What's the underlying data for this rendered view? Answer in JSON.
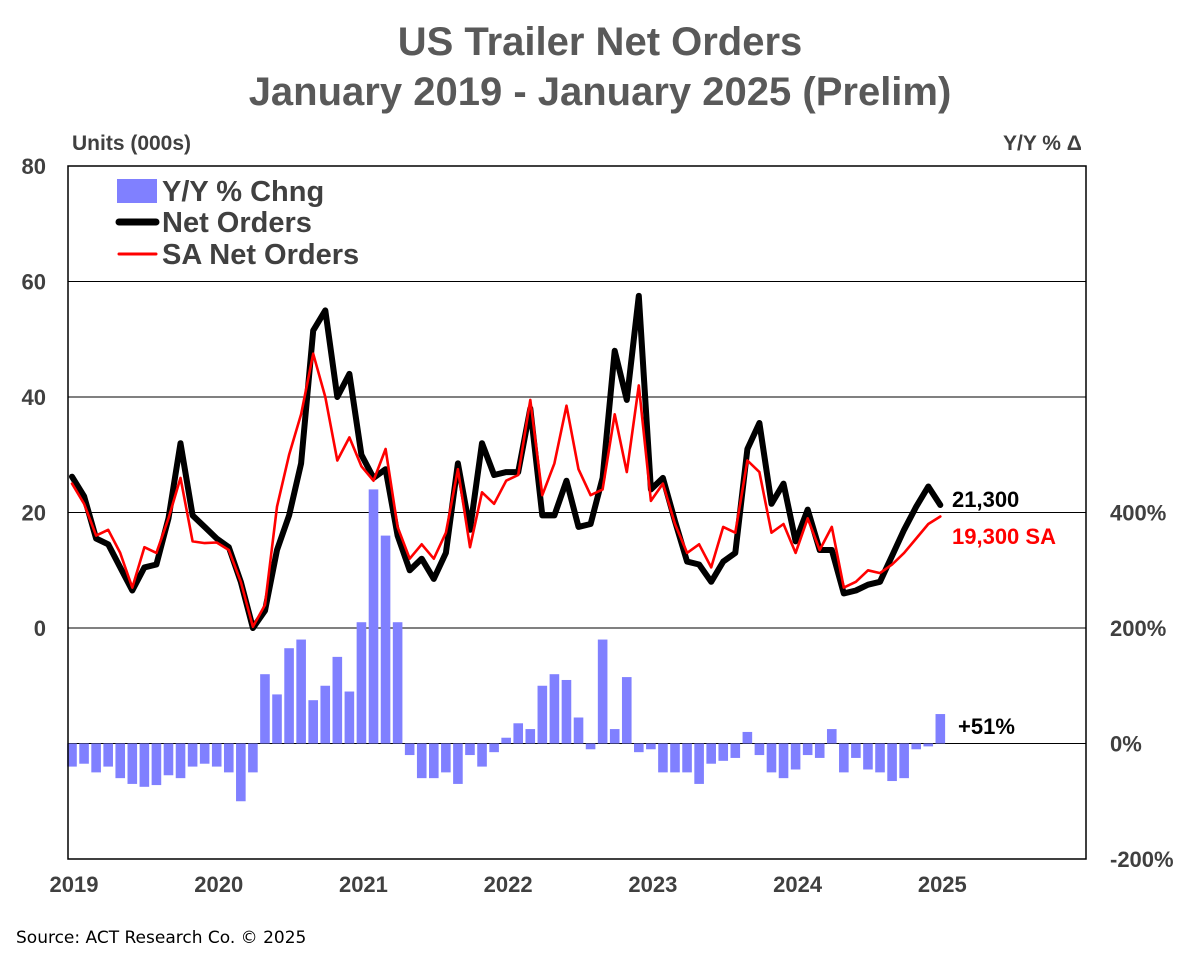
{
  "chart_data": {
    "type": "bar+line",
    "title": "US Trailer Net Orders",
    "subtitle": "January 2019 - January 2025 (Prelim)",
    "left_axis_label": "Units (000s)",
    "right_axis_label": "Y/Y % Δ",
    "left_ticks": [
      "80",
      "60",
      "40",
      "20",
      "0"
    ],
    "right_ticks": [
      "400%",
      "200%",
      "0%",
      "-200%"
    ],
    "x_ticks": [
      "2019",
      "2020",
      "2021",
      "2022",
      "2023",
      "2024",
      "2025"
    ],
    "ylim_left": [
      -40,
      80
    ],
    "ylim_right": [
      -200,
      1000
    ],
    "start": "2019-01",
    "months": [
      "2019-01",
      "2019-02",
      "2019-03",
      "2019-04",
      "2019-05",
      "2019-06",
      "2019-07",
      "2019-08",
      "2019-09",
      "2019-10",
      "2019-11",
      "2019-12",
      "2020-01",
      "2020-02",
      "2020-03",
      "2020-04",
      "2020-05",
      "2020-06",
      "2020-07",
      "2020-08",
      "2020-09",
      "2020-10",
      "2020-11",
      "2020-12",
      "2021-01",
      "2021-02",
      "2021-03",
      "2021-04",
      "2021-05",
      "2021-06",
      "2021-07",
      "2021-08",
      "2021-09",
      "2021-10",
      "2021-11",
      "2021-12",
      "2022-01",
      "2022-02",
      "2022-03",
      "2022-04",
      "2022-05",
      "2022-06",
      "2022-07",
      "2022-08",
      "2022-09",
      "2022-10",
      "2022-11",
      "2022-12",
      "2023-01",
      "2023-02",
      "2023-03",
      "2023-04",
      "2023-05",
      "2023-06",
      "2023-07",
      "2023-08",
      "2023-09",
      "2023-10",
      "2023-11",
      "2023-12",
      "2024-01",
      "2024-02",
      "2024-03",
      "2024-04",
      "2024-05",
      "2024-06",
      "2024-07",
      "2024-08",
      "2024-09",
      "2024-10",
      "2024-11",
      "2024-12",
      "2025-01"
    ],
    "legend": [
      {
        "label": "Y/Y % Chng",
        "color": "#8080FF",
        "kind": "bar"
      },
      {
        "label": "Net Orders",
        "color": "#000000",
        "kind": "line"
      },
      {
        "label": "SA Net Orders",
        "color": "#FF0000",
        "kind": "line"
      }
    ],
    "series": [
      {
        "name": "Net Orders",
        "axis": "left",
        "color": "#000000",
        "values": [
          26.2,
          22.8,
          15.5,
          14.5,
          10.5,
          6.5,
          10.5,
          11,
          19,
          32,
          19.5,
          17.5,
          15.5,
          14,
          8,
          0,
          3,
          13.5,
          19.5,
          28.5,
          51.5,
          55,
          40,
          44,
          30,
          26,
          27.5,
          16,
          10,
          12,
          8.5,
          13,
          28.5,
          17,
          32,
          26.5,
          27,
          27,
          38,
          19.5,
          19.5,
          25.5,
          17.5,
          18,
          26,
          48,
          39.5,
          57.5,
          24,
          26,
          18.5,
          11.5,
          11,
          8,
          11.5,
          13,
          31,
          35.5,
          21.5,
          25,
          15,
          20.5,
          13.5,
          13.5,
          6,
          6.5,
          7.5,
          8,
          12.5,
          17,
          21,
          24.5,
          21.3
        ]
      },
      {
        "name": "SA Net Orders",
        "axis": "left",
        "color": "#FF0000",
        "values": [
          25,
          21.5,
          16,
          17,
          13,
          7,
          14,
          13,
          19,
          26,
          15,
          14.7,
          14.8,
          13.5,
          8,
          0.2,
          4,
          21,
          30,
          37,
          47.5,
          40,
          29,
          33,
          28,
          25.5,
          31,
          17.5,
          12,
          14.5,
          12,
          16.5,
          27.5,
          14,
          23.5,
          21.5,
          25.5,
          26.5,
          39.5,
          23,
          28.5,
          38.5,
          27.5,
          23,
          24,
          37,
          27,
          42,
          22,
          25,
          18,
          13,
          14.5,
          10.5,
          17.5,
          16.5,
          29,
          27,
          16.5,
          18,
          13,
          19,
          13.5,
          17.5,
          7,
          8,
          10,
          9.5,
          11,
          13,
          15.5,
          18,
          19.3
        ]
      },
      {
        "name": "Y/Y % Chng",
        "axis": "right",
        "color": "#8080FF",
        "values": [
          -40,
          -35,
          -50,
          -40,
          -60,
          -70,
          -75,
          -72,
          -55,
          -60,
          -40,
          -35,
          -40,
          -50,
          -100,
          -50,
          120,
          85,
          165,
          180,
          75,
          100,
          150,
          90,
          210,
          440,
          360,
          210,
          -20,
          -60,
          -60,
          -50,
          -70,
          -20,
          -40,
          -15,
          10,
          35,
          25,
          100,
          120,
          110,
          45,
          -10,
          180,
          25,
          115,
          -15,
          -10,
          -50,
          -50,
          -50,
          -70,
          -35,
          -30,
          -25,
          20,
          -20,
          -50,
          -60,
          -45,
          -20,
          -25,
          25,
          -50,
          -25,
          -45,
          -50,
          -65,
          -60,
          -10,
          -5,
          51
        ]
      }
    ],
    "annotations": {
      "net_last": "21,300",
      "sa_last": "19,300 SA",
      "yoy_last": "+51%"
    },
    "grid": "horizontal"
  },
  "source": "Source: ACT Research Co. © 2025"
}
